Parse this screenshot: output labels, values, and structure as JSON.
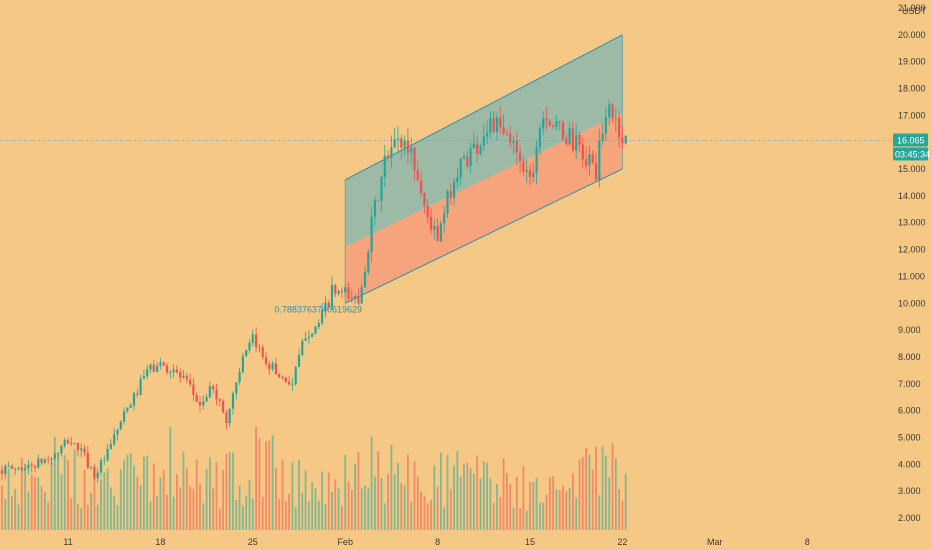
{
  "chart_data": {
    "type": "candlestick",
    "currency": "USDT",
    "ylim": [
      1.5,
      21.6
    ],
    "y_ticks": [
      "2.000",
      "3.000",
      "4.000",
      "5.000",
      "6.000",
      "7.000",
      "8.000",
      "9.000",
      "10.000",
      "11.000",
      "12.000",
      "13.000",
      "14.000",
      "15.000",
      "16.000",
      "17.000",
      "18.000",
      "19.000",
      "20.000",
      "21.000"
    ],
    "x_ticks": [
      {
        "label": "11",
        "date": "2021-01-11"
      },
      {
        "label": "18",
        "date": "2021-01-18"
      },
      {
        "label": "25",
        "date": "2021-01-25"
      },
      {
        "label": "Feb",
        "date": "2021-02-01"
      },
      {
        "label": "8",
        "date": "2021-02-08"
      },
      {
        "label": "15",
        "date": "2021-02-15"
      },
      {
        "label": "22",
        "date": "2021-02-22"
      },
      {
        "label": "Mar",
        "date": "2021-03-01"
      },
      {
        "label": "8",
        "date": "2021-03-08"
      }
    ],
    "x_range": [
      "2021-01-06",
      "2021-03-13"
    ],
    "last_price": "16.065",
    "countdown": "03:45:34",
    "annotation": "0.7883763740619629",
    "channel": {
      "start_date": "2021-02-01",
      "end_date": "2021-02-22",
      "lower_start": 10.0,
      "lower_end": 15.0,
      "upper_start": 14.6,
      "upper_end": 20.0,
      "mid_start": 12.1,
      "mid_end": 17.1
    },
    "series_path": [
      [
        "2021-01-06",
        3.8
      ],
      [
        "2021-01-08",
        3.9
      ],
      [
        "2021-01-10",
        4.3
      ],
      [
        "2021-01-11",
        4.9
      ],
      [
        "2021-01-12",
        4.5
      ],
      [
        "2021-01-13",
        3.6
      ],
      [
        "2021-01-14",
        4.4
      ],
      [
        "2021-01-15",
        5.6
      ],
      [
        "2021-01-16",
        6.5
      ],
      [
        "2021-01-17",
        7.5
      ],
      [
        "2021-01-18",
        7.7
      ],
      [
        "2021-01-19",
        7.5
      ],
      [
        "2021-01-20",
        7.0
      ],
      [
        "2021-01-21",
        6.2
      ],
      [
        "2021-01-22",
        6.9
      ],
      [
        "2021-01-23",
        5.6
      ],
      [
        "2021-01-24",
        7.6
      ],
      [
        "2021-01-25",
        8.6
      ],
      [
        "2021-01-26",
        7.9
      ],
      [
        "2021-01-27",
        7.3
      ],
      [
        "2021-01-28",
        7.0
      ],
      [
        "2021-01-29",
        8.9
      ],
      [
        "2021-01-30",
        9.2
      ],
      [
        "2021-01-31",
        10.4
      ],
      [
        "2021-02-01",
        10.3
      ],
      [
        "2021-02-02",
        10.1
      ],
      [
        "2021-02-03",
        12.9
      ],
      [
        "2021-02-04",
        15.2
      ],
      [
        "2021-02-05",
        16.1
      ],
      [
        "2021-02-06",
        15.7
      ],
      [
        "2021-02-07",
        13.6
      ],
      [
        "2021-02-08",
        12.3
      ],
      [
        "2021-02-09",
        14.3
      ],
      [
        "2021-02-10",
        15.4
      ],
      [
        "2021-02-11",
        15.9
      ],
      [
        "2021-02-12",
        16.8
      ],
      [
        "2021-02-13",
        16.2
      ],
      [
        "2021-02-14",
        15.8
      ],
      [
        "2021-02-15",
        14.6
      ],
      [
        "2021-02-16",
        17.3
      ],
      [
        "2021-02-17",
        16.4
      ],
      [
        "2021-02-18",
        16.2
      ],
      [
        "2021-02-19",
        15.5
      ],
      [
        "2021-02-20",
        15.0
      ],
      [
        "2021-02-21",
        17.4
      ],
      [
        "2021-02-22",
        16.1
      ]
    ],
    "volume_path": [
      [
        "2021-01-06",
        3.6
      ],
      [
        "2021-01-10",
        4.4
      ],
      [
        "2021-01-14",
        3.6
      ],
      [
        "2021-01-18",
        4.4
      ],
      [
        "2021-01-22",
        3.9
      ],
      [
        "2021-01-26",
        4.5
      ],
      [
        "2021-01-30",
        4.0
      ],
      [
        "2021-02-03",
        4.4
      ],
      [
        "2021-02-07",
        3.9
      ],
      [
        "2021-02-11",
        4.0
      ],
      [
        "2021-02-15",
        3.6
      ],
      [
        "2021-02-19",
        3.9
      ],
      [
        "2021-02-21",
        5.3
      ],
      [
        "2021-02-22",
        3.4
      ]
    ],
    "colors": {
      "background": "#f5c985",
      "up": "#26a69a",
      "down": "#ef5350",
      "channel_upper_fill": "#8db7ad",
      "channel_lower_fill": "#f5a07a",
      "channel_border": "#2e8fb3",
      "price_line": "#5a9ab8",
      "price_tag": "#26a69a",
      "text": "#3a3a3a"
    }
  }
}
